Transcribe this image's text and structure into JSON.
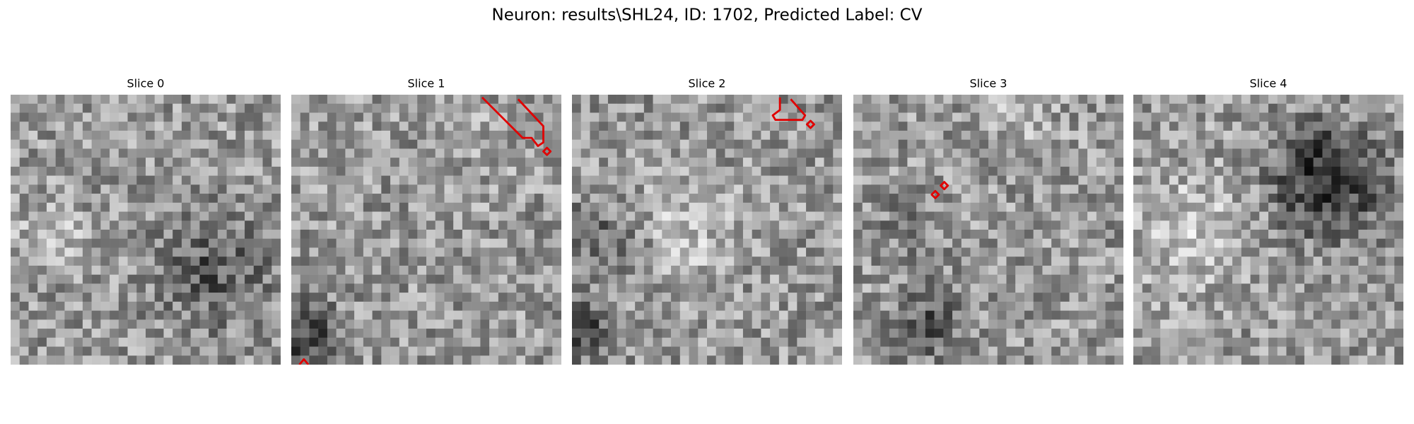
{
  "title": "Neuron: results\\SHL24, ID: 1702, Predicted Label: CV",
  "panels": [
    {
      "title": "Slice 0"
    },
    {
      "title": "Slice 1"
    },
    {
      "title": "Slice 2"
    },
    {
      "title": "Slice 3"
    },
    {
      "title": "Slice 4"
    }
  ]
}
